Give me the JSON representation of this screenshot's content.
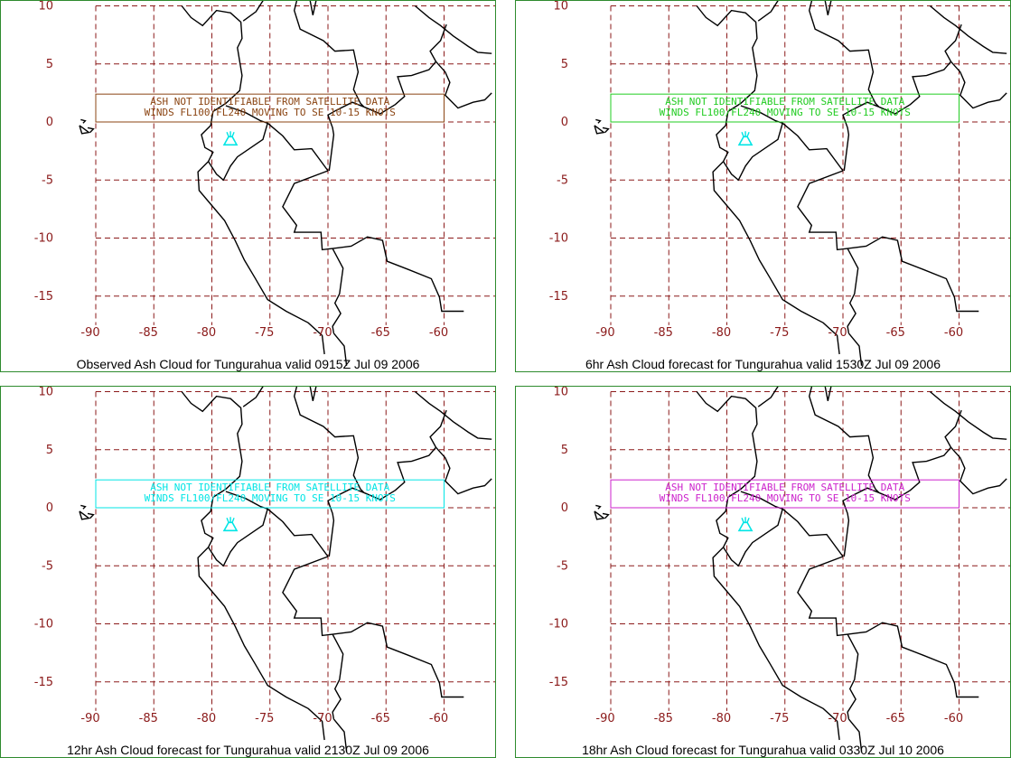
{
  "colors": {
    "frame": "#2e8b2e",
    "grid": "#8b1a1a",
    "tick": "#8b1a1a",
    "coast": "#000000",
    "volcano": "#00e5e5",
    "box_colors": [
      "#8b4513",
      "#22cc22",
      "#00e5e5",
      "#cc22cc"
    ]
  },
  "axes": {
    "lat_ticks": [
      "10",
      "5",
      "0",
      "-5",
      "-10",
      "-15"
    ],
    "lon_ticks": [
      "-90",
      "-85",
      "-80",
      "-75",
      "-70",
      "-65",
      "-60"
    ]
  },
  "volcano": {
    "name": "Tungurahua",
    "icon": "volcano-icon"
  },
  "advisory": {
    "line1": "ASH NOT IDENTIFIABLE FROM SATELLITE DATA",
    "line2": "WINDS FL100/FL240 MOVING TO SE 10-15 KNOTS"
  },
  "panels": [
    {
      "id": "observed",
      "caption": "Observed Ash Cloud for Tungurahua valid 0915Z Jul 09 2006"
    },
    {
      "id": "6hr",
      "caption": "6hr Ash Cloud forecast for Tungurahua valid 1530Z Jul 09 2006"
    },
    {
      "id": "12hr",
      "caption": "12hr Ash Cloud forecast for Tungurahua valid 2130Z Jul 09 2006"
    },
    {
      "id": "18hr",
      "caption": "18hr Ash Cloud forecast for Tungurahua valid 0330Z Jul 10 2006"
    }
  ]
}
